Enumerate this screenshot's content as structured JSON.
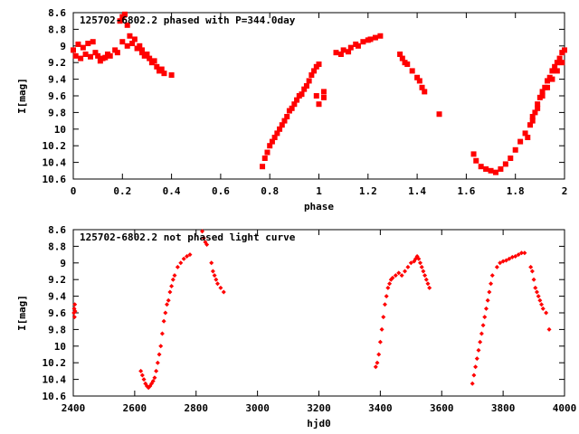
{
  "chart_data": [
    {
      "type": "scatter",
      "title": "125702-6802.2 phased with P=344.0day",
      "xlabel": "phase",
      "ylabel": "I[mag]",
      "xlim": [
        0,
        2
      ],
      "ylim": [
        8.6,
        10.6
      ],
      "y_inverted": true,
      "x_ticks": [
        0,
        0.2,
        0.4,
        0.6,
        0.8,
        1,
        1.2,
        1.4,
        1.6,
        1.8,
        2
      ],
      "x_tick_labels": [
        "0",
        "0.2",
        "0.4",
        "0.6",
        "0.8",
        "1",
        "1.2",
        "1.4",
        "1.6",
        "1.8",
        "2"
      ],
      "y_ticks": [
        8.6,
        8.8,
        9,
        9.2,
        9.4,
        9.6,
        9.8,
        10,
        10.2,
        10.4,
        10.6
      ],
      "y_tick_labels": [
        "8.6",
        "8.8",
        "9",
        "9.2",
        "9.4",
        "9.6",
        "9.8",
        "10",
        "10.2",
        "10.4",
        "10.6"
      ],
      "marker": "square",
      "color": "#ff0000",
      "series": [
        {
          "name": "phased",
          "points": [
            [
              0.0,
              9.05
            ],
            [
              0.01,
              9.12
            ],
            [
              0.02,
              8.98
            ],
            [
              0.03,
              9.15
            ],
            [
              0.04,
              9.02
            ],
            [
              0.05,
              9.1
            ],
            [
              0.06,
              8.97
            ],
            [
              0.07,
              9.13
            ],
            [
              0.08,
              8.95
            ],
            [
              0.09,
              9.08
            ],
            [
              0.1,
              9.12
            ],
            [
              0.11,
              9.18
            ],
            [
              0.12,
              9.15
            ],
            [
              0.13,
              9.14
            ],
            [
              0.14,
              9.1
            ],
            [
              0.15,
              9.12
            ],
            [
              0.17,
              9.05
            ],
            [
              0.18,
              9.08
            ],
            [
              0.19,
              8.7
            ],
            [
              0.2,
              8.65
            ],
            [
              0.21,
              8.62
            ],
            [
              0.22,
              8.75
            ],
            [
              0.2,
              8.95
            ],
            [
              0.22,
              9.0
            ],
            [
              0.24,
              8.97
            ],
            [
              0.26,
              9.03
            ],
            [
              0.28,
              9.05
            ],
            [
              0.23,
              8.88
            ],
            [
              0.25,
              8.92
            ],
            [
              0.27,
              9.0
            ],
            [
              0.28,
              9.08
            ],
            [
              0.29,
              9.12
            ],
            [
              0.3,
              9.1
            ],
            [
              0.31,
              9.15
            ],
            [
              0.32,
              9.2
            ],
            [
              0.33,
              9.18
            ],
            [
              0.34,
              9.25
            ],
            [
              0.35,
              9.3
            ],
            [
              0.36,
              9.28
            ],
            [
              0.37,
              9.33
            ],
            [
              0.4,
              9.35
            ],
            [
              0.77,
              10.45
            ],
            [
              0.78,
              10.35
            ],
            [
              0.79,
              10.28
            ],
            [
              0.8,
              10.2
            ],
            [
              0.81,
              10.15
            ],
            [
              0.82,
              10.1
            ],
            [
              0.83,
              10.05
            ],
            [
              0.84,
              10.0
            ],
            [
              0.85,
              9.95
            ],
            [
              0.86,
              9.9
            ],
            [
              0.87,
              9.85
            ],
            [
              0.88,
              9.78
            ],
            [
              0.89,
              9.75
            ],
            [
              0.9,
              9.7
            ],
            [
              0.91,
              9.65
            ],
            [
              0.92,
              9.6
            ],
            [
              0.93,
              9.58
            ],
            [
              0.94,
              9.52
            ],
            [
              0.95,
              9.48
            ],
            [
              0.96,
              9.42
            ],
            [
              0.97,
              9.35
            ],
            [
              0.98,
              9.3
            ],
            [
              0.99,
              9.25
            ],
            [
              1.0,
              9.22
            ],
            [
              0.99,
              9.6
            ],
            [
              1.0,
              9.7
            ],
            [
              1.02,
              9.55
            ],
            [
              1.02,
              9.62
            ],
            [
              1.07,
              9.08
            ],
            [
              1.09,
              9.1
            ],
            [
              1.1,
              9.05
            ],
            [
              1.12,
              9.07
            ],
            [
              1.13,
              9.02
            ],
            [
              1.15,
              8.98
            ],
            [
              1.16,
              9.0
            ],
            [
              1.18,
              8.95
            ],
            [
              1.2,
              8.93
            ],
            [
              1.21,
              8.92
            ],
            [
              1.23,
              8.9
            ],
            [
              1.25,
              8.88
            ],
            [
              1.33,
              9.1
            ],
            [
              1.34,
              9.15
            ],
            [
              1.35,
              9.2
            ],
            [
              1.36,
              9.22
            ],
            [
              1.38,
              9.3
            ],
            [
              1.4,
              9.38
            ],
            [
              1.41,
              9.42
            ],
            [
              1.42,
              9.5
            ],
            [
              1.43,
              9.55
            ],
            [
              1.49,
              9.82
            ],
            [
              1.63,
              10.3
            ],
            [
              1.64,
              10.38
            ],
            [
              1.66,
              10.45
            ],
            [
              1.68,
              10.48
            ],
            [
              1.7,
              10.5
            ],
            [
              1.72,
              10.52
            ],
            [
              1.74,
              10.48
            ],
            [
              1.76,
              10.42
            ],
            [
              1.78,
              10.35
            ],
            [
              1.8,
              10.25
            ],
            [
              1.82,
              10.15
            ],
            [
              1.84,
              10.05
            ],
            [
              1.86,
              9.95
            ],
            [
              1.87,
              9.85
            ],
            [
              1.88,
              9.8
            ],
            [
              1.89,
              9.7
            ],
            [
              1.9,
              9.62
            ],
            [
              1.91,
              9.55
            ],
            [
              1.92,
              9.5
            ],
            [
              1.93,
              9.42
            ],
            [
              1.94,
              9.38
            ],
            [
              1.95,
              9.3
            ],
            [
              1.96,
              9.25
            ],
            [
              1.97,
              9.2
            ],
            [
              1.98,
              9.15
            ],
            [
              1.99,
              9.08
            ],
            [
              2.0,
              9.05
            ],
            [
              1.85,
              10.1
            ],
            [
              1.87,
              9.9
            ],
            [
              1.89,
              9.75
            ],
            [
              1.91,
              9.6
            ],
            [
              1.93,
              9.5
            ],
            [
              1.95,
              9.4
            ],
            [
              1.97,
              9.3
            ],
            [
              1.99,
              9.2
            ]
          ]
        }
      ]
    },
    {
      "type": "scatter",
      "title": "125702-6802.2 not phased light curve",
      "xlabel": "hjd0",
      "ylabel": "I[mag]",
      "xlim": [
        2400,
        4000
      ],
      "ylim": [
        8.6,
        10.6
      ],
      "y_inverted": true,
      "x_ticks": [
        2400,
        2600,
        2800,
        3000,
        3200,
        3400,
        3600,
        3800,
        4000
      ],
      "x_tick_labels": [
        "2400",
        "2600",
        "2800",
        "3000",
        "3200",
        "3400",
        "3600",
        "3800",
        "4000"
      ],
      "y_ticks": [
        8.6,
        8.8,
        9,
        9.2,
        9.4,
        9.6,
        9.8,
        10,
        10.2,
        10.4,
        10.6
      ],
      "y_tick_labels": [
        "8.6",
        "8.8",
        "9",
        "9.2",
        "9.4",
        "9.6",
        "9.8",
        "10",
        "10.2",
        "10.4",
        "10.6"
      ],
      "marker": "diamond",
      "color": "#ff0000",
      "series": [
        {
          "name": "light curve",
          "points": [
            [
              2402,
              9.6
            ],
            [
              2403,
              9.55
            ],
            [
              2404,
              9.65
            ],
            [
              2405,
              9.5
            ],
            [
              2406,
              9.58
            ],
            [
              2620,
              10.3
            ],
            [
              2625,
              10.35
            ],
            [
              2630,
              10.4
            ],
            [
              2635,
              10.45
            ],
            [
              2640,
              10.48
            ],
            [
              2645,
              10.5
            ],
            [
              2650,
              10.48
            ],
            [
              2655,
              10.45
            ],
            [
              2660,
              10.42
            ],
            [
              2665,
              10.38
            ],
            [
              2670,
              10.3
            ],
            [
              2675,
              10.2
            ],
            [
              2680,
              10.1
            ],
            [
              2685,
              10.0
            ],
            [
              2690,
              9.85
            ],
            [
              2695,
              9.7
            ],
            [
              2700,
              9.6
            ],
            [
              2705,
              9.5
            ],
            [
              2710,
              9.45
            ],
            [
              2715,
              9.35
            ],
            [
              2720,
              9.28
            ],
            [
              2725,
              9.2
            ],
            [
              2730,
              9.15
            ],
            [
              2740,
              9.05
            ],
            [
              2750,
              9.0
            ],
            [
              2760,
              8.95
            ],
            [
              2770,
              8.92
            ],
            [
              2780,
              8.9
            ],
            [
              2820,
              8.62
            ],
            [
              2825,
              8.7
            ],
            [
              2830,
              8.75
            ],
            [
              2835,
              8.78
            ],
            [
              2850,
              9.0
            ],
            [
              2855,
              9.1
            ],
            [
              2860,
              9.15
            ],
            [
              2865,
              9.2
            ],
            [
              2870,
              9.25
            ],
            [
              2880,
              9.3
            ],
            [
              2890,
              9.35
            ],
            [
              3385,
              10.25
            ],
            [
              3390,
              10.2
            ],
            [
              3395,
              10.1
            ],
            [
              3400,
              9.95
            ],
            [
              3405,
              9.8
            ],
            [
              3410,
              9.65
            ],
            [
              3415,
              9.5
            ],
            [
              3420,
              9.4
            ],
            [
              3425,
              9.3
            ],
            [
              3430,
              9.25
            ],
            [
              3435,
              9.2
            ],
            [
              3440,
              9.18
            ],
            [
              3450,
              9.15
            ],
            [
              3460,
              9.12
            ],
            [
              3470,
              9.15
            ],
            [
              3480,
              9.1
            ],
            [
              3490,
              9.05
            ],
            [
              3500,
              9.0
            ],
            [
              3510,
              8.98
            ],
            [
              3515,
              8.95
            ],
            [
              3520,
              8.92
            ],
            [
              3525,
              8.95
            ],
            [
              3530,
              9.0
            ],
            [
              3535,
              9.05
            ],
            [
              3540,
              9.1
            ],
            [
              3545,
              9.15
            ],
            [
              3550,
              9.2
            ],
            [
              3555,
              9.25
            ],
            [
              3560,
              9.3
            ],
            [
              3700,
              10.45
            ],
            [
              3705,
              10.35
            ],
            [
              3710,
              10.25
            ],
            [
              3715,
              10.15
            ],
            [
              3720,
              10.05
            ],
            [
              3725,
              9.95
            ],
            [
              3730,
              9.85
            ],
            [
              3735,
              9.75
            ],
            [
              3740,
              9.65
            ],
            [
              3745,
              9.55
            ],
            [
              3750,
              9.45
            ],
            [
              3755,
              9.35
            ],
            [
              3760,
              9.25
            ],
            [
              3765,
              9.15
            ],
            [
              3780,
              9.05
            ],
            [
              3790,
              9.0
            ],
            [
              3800,
              8.98
            ],
            [
              3810,
              8.97
            ],
            [
              3820,
              8.95
            ],
            [
              3830,
              8.93
            ],
            [
              3840,
              8.92
            ],
            [
              3850,
              8.9
            ],
            [
              3860,
              8.88
            ],
            [
              3870,
              8.88
            ],
            [
              3890,
              9.05
            ],
            [
              3895,
              9.1
            ],
            [
              3900,
              9.2
            ],
            [
              3905,
              9.3
            ],
            [
              3910,
              9.35
            ],
            [
              3915,
              9.4
            ],
            [
              3920,
              9.45
            ],
            [
              3925,
              9.5
            ],
            [
              3930,
              9.55
            ],
            [
              3940,
              9.6
            ],
            [
              3950,
              9.8
            ]
          ]
        }
      ]
    }
  ]
}
